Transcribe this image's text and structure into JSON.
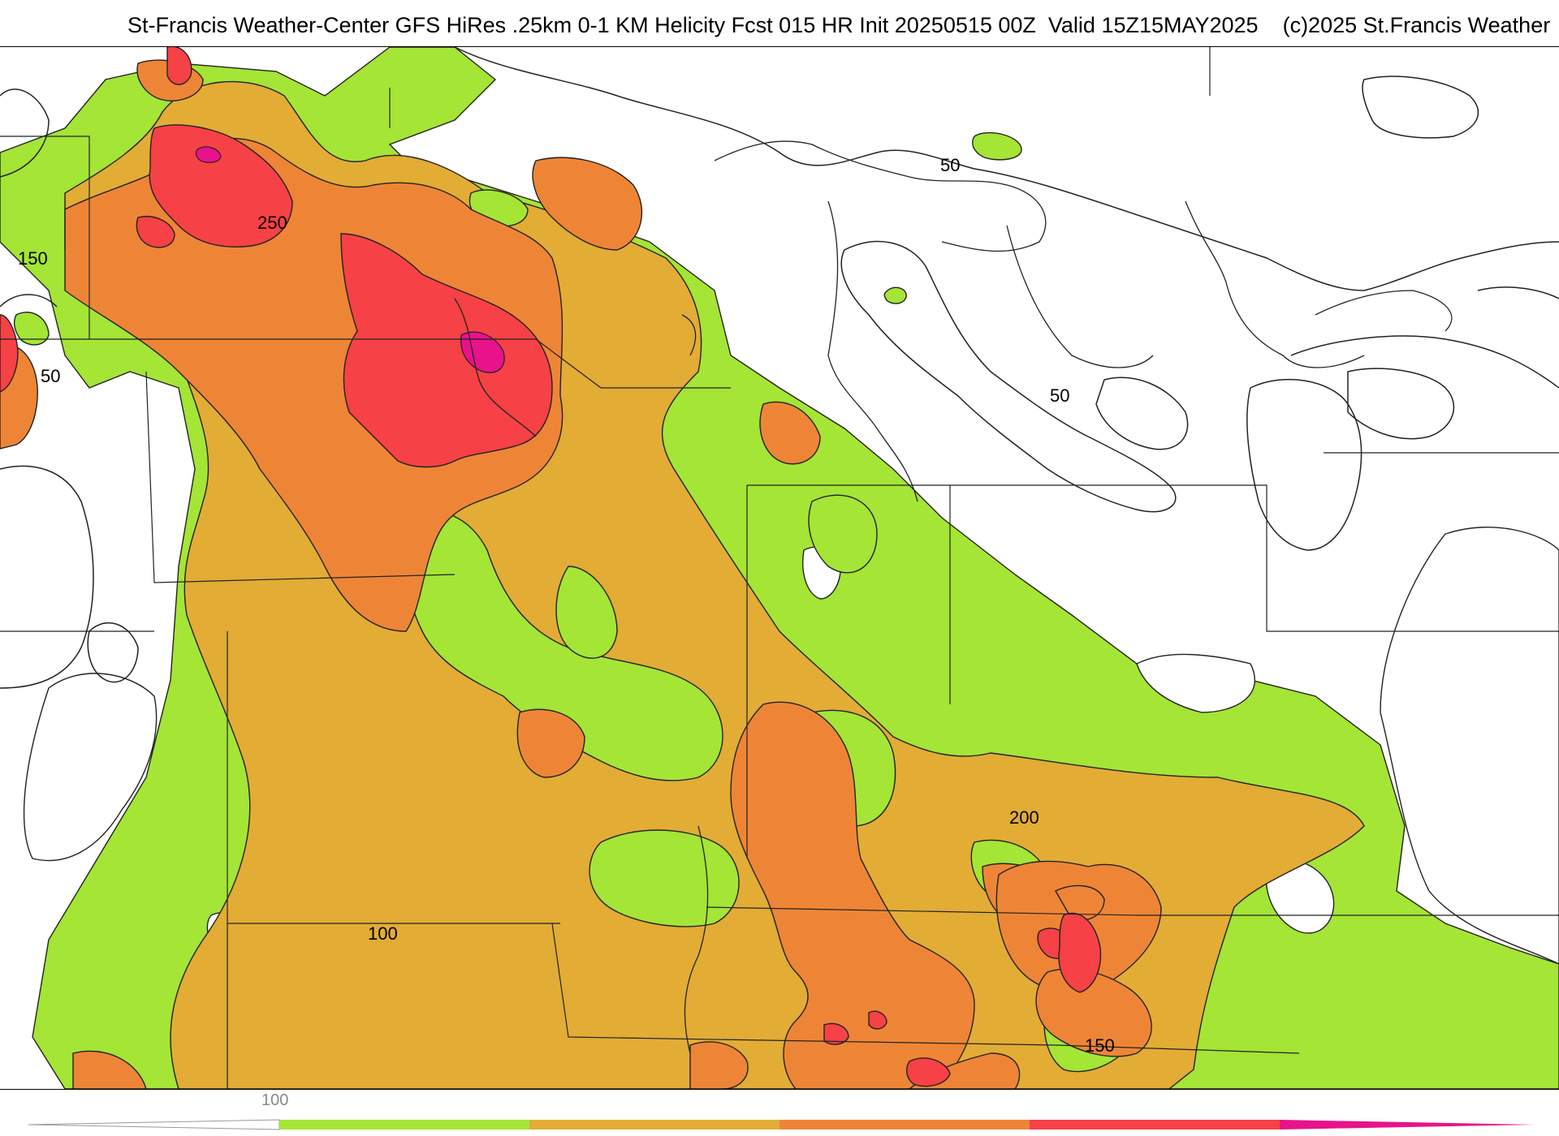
{
  "title": "St-Francis Weather-Center GFS HiRes .25km 0-1 KM Helicity Fcst 015 HR Init 20250515 00Z  Valid 15Z15MAY2025    (c)2025 St.Francis Weather",
  "contour_labels": [
    "250",
    "150",
    "50",
    "50",
    "50",
    "200",
    "100",
    "150"
  ],
  "legend": {
    "tick_label": "100",
    "colors": [
      "#a4e536",
      "#e2ac35",
      "#ee8536",
      "#f64146",
      "#e8128a"
    ]
  },
  "colors": {
    "level_green": "#a4e536",
    "level_gold": "#e2ac35",
    "level_orange": "#ee8536",
    "level_red": "#f64146",
    "level_magenta": "#e8128a",
    "background": "#ffffff"
  }
}
